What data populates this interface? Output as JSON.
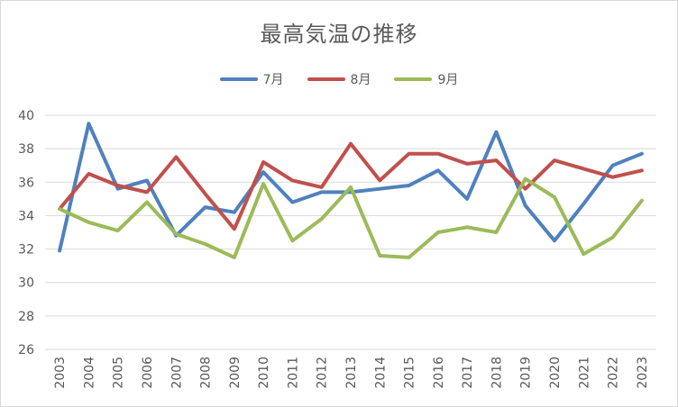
{
  "chart_data": {
    "type": "line",
    "title": "最高気温の推移",
    "xlabel": "",
    "ylabel": "",
    "categories": [
      "2003",
      "2004",
      "2005",
      "2006",
      "2007",
      "2008",
      "2009",
      "2010",
      "2011",
      "2012",
      "2013",
      "2014",
      "2015",
      "2016",
      "2017",
      "2018",
      "2019",
      "2020",
      "2021",
      "2022",
      "2023"
    ],
    "ylim": [
      26,
      40
    ],
    "yticks": [
      "26",
      "28",
      "30",
      "32",
      "34",
      "36",
      "38",
      "40"
    ],
    "grid": true,
    "legend_position": "top",
    "series": [
      {
        "name": "7月",
        "color": "#4f81bd",
        "values": [
          31.9,
          39.5,
          35.6,
          36.1,
          32.8,
          34.5,
          34.2,
          36.6,
          34.8,
          35.4,
          35.4,
          35.6,
          35.8,
          36.7,
          35.0,
          39.0,
          34.6,
          32.5,
          34.7,
          37.0,
          37.7
        ]
      },
      {
        "name": "8月",
        "color": "#c0504d",
        "values": [
          34.4,
          36.5,
          35.8,
          35.4,
          37.5,
          35.3,
          33.2,
          37.2,
          36.1,
          35.7,
          38.3,
          36.1,
          37.7,
          37.7,
          37.1,
          37.3,
          35.6,
          37.3,
          36.8,
          36.3,
          36.7
        ]
      },
      {
        "name": "9月",
        "color": "#9bbb59",
        "values": [
          34.4,
          33.6,
          33.1,
          34.8,
          32.9,
          32.3,
          31.5,
          35.9,
          32.5,
          33.8,
          35.7,
          31.6,
          31.5,
          33.0,
          33.3,
          33.0,
          36.2,
          35.1,
          31.7,
          32.7,
          34.9
        ]
      }
    ]
  }
}
